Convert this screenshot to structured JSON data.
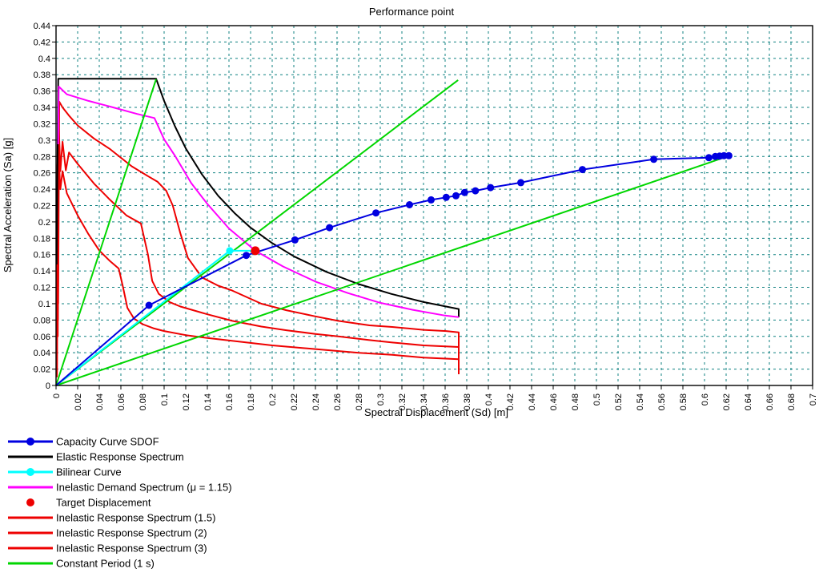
{
  "chart_data": {
    "type": "line",
    "title": "Performance point",
    "xlabel": "Spectral Displacement (Sd) [m]",
    "ylabel": "Spectral Acceleration (Sa) [g]",
    "xlim": [
      0,
      0.7
    ],
    "ylim": [
      0,
      0.44
    ],
    "grid": true,
    "grid_color": "#0f8080",
    "frame_color": "#000000",
    "x_tick_labels": [
      "0",
      "0.02",
      "0.04",
      "0.06",
      "0.08",
      "0.1",
      "0.12",
      "0.14",
      "0.16",
      "0.18",
      "0.2",
      "0.22",
      "0.24",
      "0.26",
      "0.28",
      "0.3",
      "0.32",
      "0.34",
      "0.36",
      "0.38",
      "0.4",
      "0.42",
      "0.44",
      "0.46",
      "0.48",
      "0.5",
      "0.52",
      "0.54",
      "0.56",
      "0.58",
      "0.6",
      "0.62",
      "0.64",
      "0.66",
      "0.68",
      "0.7"
    ],
    "y_tick_labels": [
      "0",
      "0.02",
      "0.04",
      "0.06",
      "0.08",
      "0.1",
      "0.12",
      "0.14",
      "0.16",
      "0.18",
      "0.2",
      "0.22",
      "0.24",
      "0.26",
      "0.28",
      "0.3",
      "0.32",
      "0.34",
      "0.36",
      "0.38",
      "0.4",
      "0.42",
      "0.44"
    ],
    "series": [
      {
        "name": "Inelastic Response Spectrum (3)",
        "color": "#ee0000",
        "width": 2,
        "points": [
          [
            0.0008,
            0.01
          ],
          [
            0.0012,
            0.23
          ],
          [
            0.0016,
            0.06
          ],
          [
            0.002,
            0.29
          ],
          [
            0.004,
            0.24
          ],
          [
            0.006,
            0.262
          ],
          [
            0.01,
            0.235
          ],
          [
            0.02,
            0.208
          ],
          [
            0.03,
            0.185
          ],
          [
            0.04,
            0.165
          ],
          [
            0.05,
            0.152
          ],
          [
            0.058,
            0.143
          ],
          [
            0.062,
            0.12
          ],
          [
            0.066,
            0.095
          ],
          [
            0.072,
            0.082
          ],
          [
            0.08,
            0.075
          ],
          [
            0.09,
            0.07
          ],
          [
            0.1,
            0.0665
          ],
          [
            0.12,
            0.0615
          ],
          [
            0.14,
            0.058
          ],
          [
            0.17,
            0.0535
          ],
          [
            0.2,
            0.049
          ],
          [
            0.24,
            0.0445
          ],
          [
            0.28,
            0.04
          ],
          [
            0.311,
            0.0375
          ],
          [
            0.34,
            0.034
          ],
          [
            0.3726,
            0.032
          ],
          [
            0.3726,
            0.0137
          ]
        ]
      },
      {
        "name": "Inelastic Response Spectrum (2)",
        "color": "#ee0000",
        "width": 2,
        "points": [
          [
            0.0008,
            0.015
          ],
          [
            0.0013,
            0.27
          ],
          [
            0.0018,
            0.08
          ],
          [
            0.0025,
            0.318
          ],
          [
            0.004,
            0.262
          ],
          [
            0.006,
            0.298
          ],
          [
            0.009,
            0.263
          ],
          [
            0.012,
            0.285
          ],
          [
            0.02,
            0.271
          ],
          [
            0.035,
            0.247
          ],
          [
            0.05,
            0.227
          ],
          [
            0.065,
            0.208
          ],
          [
            0.0785,
            0.198
          ],
          [
            0.085,
            0.16
          ],
          [
            0.089,
            0.128
          ],
          [
            0.095,
            0.112
          ],
          [
            0.105,
            0.102
          ],
          [
            0.115,
            0.0965
          ],
          [
            0.14,
            0.087
          ],
          [
            0.163,
            0.079
          ],
          [
            0.19,
            0.072
          ],
          [
            0.213,
            0.0675
          ],
          [
            0.24,
            0.063
          ],
          [
            0.261,
            0.06
          ],
          [
            0.29,
            0.0555
          ],
          [
            0.311,
            0.0525
          ],
          [
            0.34,
            0.049
          ],
          [
            0.3726,
            0.047
          ],
          [
            0.3726,
            0.0137
          ]
        ]
      },
      {
        "name": "Inelastic Response Spectrum (1.5)",
        "color": "#ee0000",
        "width": 2,
        "points": [
          [
            0.0008,
            0.02
          ],
          [
            0.0015,
            0.3
          ],
          [
            0.002,
            0.1
          ],
          [
            0.003,
            0.347
          ],
          [
            0.006,
            0.34
          ],
          [
            0.012,
            0.33
          ],
          [
            0.02,
            0.318
          ],
          [
            0.035,
            0.302
          ],
          [
            0.05,
            0.289
          ],
          [
            0.07,
            0.268
          ],
          [
            0.085,
            0.256
          ],
          [
            0.094,
            0.249
          ],
          [
            0.102,
            0.238
          ],
          [
            0.108,
            0.22
          ],
          [
            0.115,
            0.186
          ],
          [
            0.122,
            0.156
          ],
          [
            0.135,
            0.132
          ],
          [
            0.15,
            0.122
          ],
          [
            0.163,
            0.116
          ],
          [
            0.19,
            0.1
          ],
          [
            0.213,
            0.092
          ],
          [
            0.24,
            0.0845
          ],
          [
            0.261,
            0.079
          ],
          [
            0.29,
            0.0735
          ],
          [
            0.311,
            0.0715
          ],
          [
            0.34,
            0.068
          ],
          [
            0.361,
            0.0665
          ],
          [
            0.3726,
            0.065
          ],
          [
            0.3726,
            0.0137
          ]
        ]
      },
      {
        "name": "Elastic Response Spectrum",
        "color": "#000000",
        "width": 2,
        "points": [
          [
            0.0005,
            0.148
          ],
          [
            0.002,
            0.375
          ],
          [
            0.0926,
            0.375
          ],
          [
            0.1,
            0.348
          ],
          [
            0.11,
            0.317
          ],
          [
            0.12,
            0.29
          ],
          [
            0.135,
            0.258
          ],
          [
            0.15,
            0.232
          ],
          [
            0.165,
            0.211
          ],
          [
            0.18,
            0.193
          ],
          [
            0.2,
            0.174
          ],
          [
            0.22,
            0.158
          ],
          [
            0.25,
            0.139
          ],
          [
            0.28,
            0.124
          ],
          [
            0.31,
            0.112
          ],
          [
            0.34,
            0.102
          ],
          [
            0.3726,
            0.0935
          ],
          [
            0.3726,
            0.0835
          ]
        ]
      },
      {
        "name": "Inelastic Demand Spectrum (μ = 1.15)",
        "color": "#ff00ff",
        "width": 2,
        "points": [
          [
            0.002,
            0.295
          ],
          [
            0.0025,
            0.3655
          ],
          [
            0.01,
            0.356
          ],
          [
            0.03,
            0.348
          ],
          [
            0.05,
            0.341
          ],
          [
            0.075,
            0.332
          ],
          [
            0.091,
            0.327
          ],
          [
            0.1,
            0.301
          ],
          [
            0.11,
            0.281
          ],
          [
            0.125,
            0.2475
          ],
          [
            0.14,
            0.222
          ],
          [
            0.16,
            0.192
          ],
          [
            0.1844,
            0.1647
          ],
          [
            0.21,
            0.1455
          ],
          [
            0.24,
            0.127
          ],
          [
            0.27,
            0.113
          ],
          [
            0.3,
            0.101
          ],
          [
            0.33,
            0.0925
          ],
          [
            0.36,
            0.0855
          ],
          [
            0.3726,
            0.0835
          ]
        ]
      },
      {
        "name": "Constant Period line 1",
        "color": "#00d600",
        "width": 2,
        "points": [
          [
            0,
            0
          ],
          [
            0.0926,
            0.3745
          ]
        ]
      },
      {
        "name": "Constant Period line 2",
        "color": "#00d600",
        "width": 2,
        "points": [
          [
            0,
            0
          ],
          [
            0.372,
            0.3735
          ]
        ]
      },
      {
        "name": "Constant Period line 3",
        "color": "#00d600",
        "width": 2,
        "points": [
          [
            0,
            0
          ],
          [
            0.622,
            0.2805
          ]
        ]
      },
      {
        "name": "Bilinear Curve",
        "color": "#00ffff",
        "width": 2,
        "points": [
          [
            0,
            0
          ],
          [
            0.1607,
            0.1647
          ],
          [
            0.1844,
            0.1647
          ]
        ],
        "markers": [
          [
            0.1607,
            0.1647
          ]
        ],
        "marker_radius": 4.5
      },
      {
        "name": "Capacity Curve SDOF",
        "color": "#0000e0",
        "width": 2,
        "points": [
          [
            0,
            0
          ],
          [
            0.086,
            0.098
          ],
          [
            0.176,
            0.159
          ],
          [
            0.221,
            0.178
          ],
          [
            0.253,
            0.193
          ],
          [
            0.296,
            0.211
          ],
          [
            0.327,
            0.221
          ],
          [
            0.347,
            0.227
          ],
          [
            0.361,
            0.23
          ],
          [
            0.37,
            0.232
          ],
          [
            0.378,
            0.236
          ],
          [
            0.388,
            0.238
          ],
          [
            0.402,
            0.242
          ],
          [
            0.43,
            0.248
          ],
          [
            0.487,
            0.264
          ],
          [
            0.553,
            0.2765
          ],
          [
            0.604,
            0.2785
          ],
          [
            0.61,
            0.28
          ],
          [
            0.614,
            0.2805
          ],
          [
            0.618,
            0.281
          ],
          [
            0.6225,
            0.281
          ]
        ],
        "markers": [
          [
            0.086,
            0.098
          ],
          [
            0.176,
            0.159
          ],
          [
            0.221,
            0.178
          ],
          [
            0.253,
            0.193
          ],
          [
            0.296,
            0.211
          ],
          [
            0.327,
            0.221
          ],
          [
            0.347,
            0.227
          ],
          [
            0.361,
            0.23
          ],
          [
            0.37,
            0.232
          ],
          [
            0.378,
            0.236
          ],
          [
            0.388,
            0.238
          ],
          [
            0.402,
            0.242
          ],
          [
            0.43,
            0.248
          ],
          [
            0.487,
            0.264
          ],
          [
            0.553,
            0.2765
          ],
          [
            0.604,
            0.2785
          ],
          [
            0.61,
            0.28
          ],
          [
            0.614,
            0.2805
          ],
          [
            0.618,
            0.281
          ],
          [
            0.6225,
            0.281
          ]
        ],
        "marker_radius": 4.5
      },
      {
        "name": "Target Displacement",
        "color": "#ee0000",
        "width": 0,
        "points": [],
        "markers": [
          [
            0.1844,
            0.1647
          ]
        ],
        "marker_radius": 5.5
      }
    ],
    "legend": {
      "position": "bottom-left",
      "entries": [
        {
          "label": "Capacity Curve SDOF",
          "color": "#0000e0",
          "line": true,
          "marker": true
        },
        {
          "label": "Elastic Response Spectrum",
          "color": "#000000",
          "line": true,
          "marker": false
        },
        {
          "label": "Bilinear Curve",
          "color": "#00ffff",
          "line": true,
          "marker": true
        },
        {
          "label": "Inelastic Demand Spectrum (μ = 1.15)",
          "color": "#ff00ff",
          "line": true,
          "marker": false
        },
        {
          "label": "Target Displacement",
          "color": "#ee0000",
          "line": false,
          "marker": true
        },
        {
          "label": "Inelastic Response Spectrum (1.5)",
          "color": "#ee0000",
          "line": true,
          "marker": false
        },
        {
          "label": "Inelastic Response Spectrum (2)",
          "color": "#ee0000",
          "line": true,
          "marker": false
        },
        {
          "label": "Inelastic Response Spectrum (3)",
          "color": "#ee0000",
          "line": true,
          "marker": false
        },
        {
          "label": "Constant Period (1 s)",
          "color": "#00d600",
          "line": true,
          "marker": false
        }
      ]
    }
  }
}
